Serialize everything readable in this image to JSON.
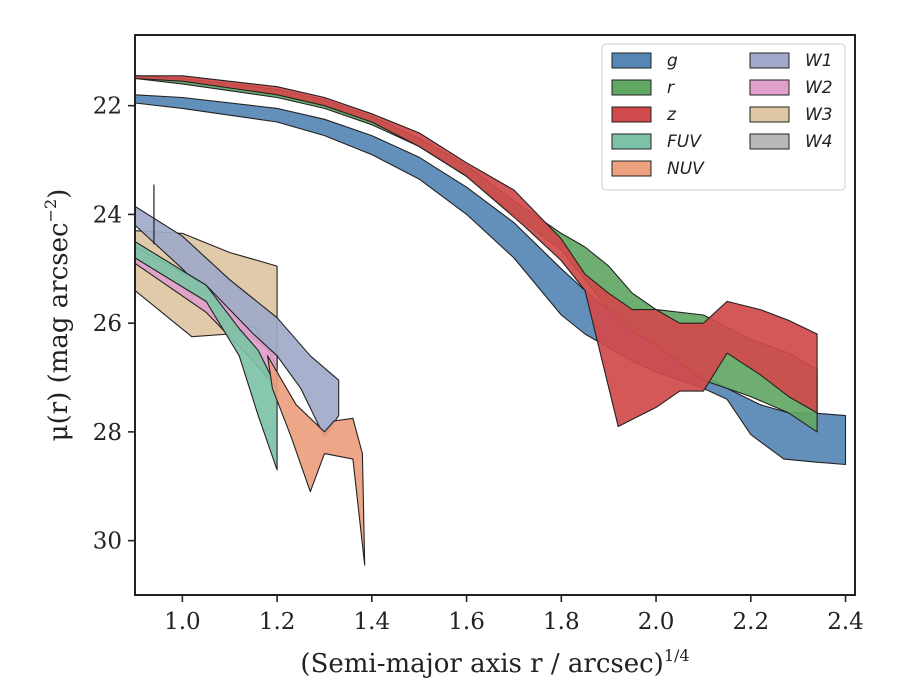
{
  "chart_data": {
    "type": "area",
    "xlabel": "(Semi-major axis r / arcsec)",
    "xlabel_sup": "1/4",
    "ylabel": "μ(r) (mag arcsec",
    "ylabel_sup": "−2",
    "ylabel_tail": ")",
    "xlim": [
      0.9,
      2.42
    ],
    "ylim": [
      31.0,
      20.7
    ],
    "y_inverted": true,
    "x_ticks": [
      1.0,
      1.2,
      1.4,
      1.6,
      1.8,
      2.0,
      2.2,
      2.4
    ],
    "x_tick_labels": [
      "1.0",
      "1.2",
      "1.4",
      "1.6",
      "1.8",
      "2.0",
      "2.2",
      "2.4"
    ],
    "y_ticks": [
      22,
      24,
      26,
      28,
      30
    ],
    "y_tick_labels": [
      "22",
      "24",
      "26",
      "28",
      "30"
    ],
    "grid": false,
    "legend_position": "top-right",
    "legend_columns": 2,
    "series": [
      {
        "name": "W3",
        "color": "#dec5a3",
        "x": [
          0.9,
          1.0,
          1.1,
          1.2,
          1.2,
          1.15,
          1.1,
          1.02,
          0.9
        ],
        "y": [
          24.3,
          24.35,
          24.7,
          24.95,
          26.8,
          26.05,
          26.2,
          26.25,
          25.4
        ]
      },
      {
        "name": "W1",
        "color": "#9fa9c9",
        "x": [
          0.9,
          1.0,
          1.1,
          1.2,
          1.27,
          1.33,
          1.33,
          1.3,
          1.25,
          1.2,
          1.12,
          1.0,
          0.9
        ],
        "y": [
          23.85,
          24.4,
          25.2,
          25.9,
          26.6,
          27.05,
          27.7,
          28.1,
          27.2,
          26.6,
          26.1,
          25.0,
          24.2
        ]
      },
      {
        "name": "W2",
        "color": "#e0a0cb",
        "x": [
          0.9,
          1.05,
          1.15,
          1.2,
          1.2,
          1.15,
          1.05,
          0.9
        ],
        "y": [
          24.6,
          25.3,
          26.2,
          26.6,
          27.2,
          26.7,
          25.8,
          24.9
        ]
      },
      {
        "name": "FUV",
        "color": "#7dc2a6",
        "x": [
          0.9,
          1.05,
          1.12,
          1.16,
          1.2,
          1.2,
          1.16,
          1.12,
          1.05,
          0.9
        ],
        "y": [
          24.5,
          25.3,
          26.1,
          26.5,
          27.2,
          28.7,
          27.7,
          26.6,
          25.6,
          24.8
        ]
      },
      {
        "name": "NUV",
        "color": "#eba07e",
        "x": [
          1.18,
          1.24,
          1.3,
          1.32,
          1.36,
          1.38,
          1.385,
          1.36,
          1.3,
          1.27,
          1.23,
          1.19
        ],
        "y": [
          26.6,
          27.5,
          28.0,
          27.8,
          27.75,
          28.4,
          30.45,
          28.5,
          28.4,
          29.1,
          28.1,
          27.2
        ]
      },
      {
        "name": "g",
        "color": "#5587b4",
        "x": [
          0.9,
          1.0,
          1.2,
          1.3,
          1.4,
          1.5,
          1.6,
          1.7,
          1.8,
          1.85,
          1.9,
          1.95,
          2.0,
          2.08,
          2.15,
          2.22,
          2.28,
          2.33,
          2.4,
          2.4,
          2.33,
          2.27,
          2.2,
          2.15,
          2.1,
          2.0,
          1.95,
          1.9,
          1.85,
          1.8,
          1.7,
          1.6,
          1.5,
          1.4,
          1.3,
          1.2,
          1.0,
          0.9
        ],
        "y": [
          21.8,
          21.85,
          22.05,
          22.25,
          22.55,
          22.95,
          23.5,
          24.15,
          25.0,
          25.4,
          25.75,
          25.75,
          26.25,
          26.85,
          27.2,
          27.5,
          27.65,
          27.65,
          27.7,
          28.6,
          28.55,
          28.5,
          28.05,
          27.4,
          27.2,
          26.9,
          26.7,
          26.45,
          26.2,
          25.85,
          24.8,
          24.0,
          23.35,
          22.9,
          22.55,
          22.3,
          22.05,
          21.95
        ]
      },
      {
        "name": "r",
        "color": "#62a865",
        "x": [
          0.9,
          1.0,
          1.2,
          1.3,
          1.4,
          1.5,
          1.6,
          1.7,
          1.8,
          1.85,
          1.9,
          1.95,
          2.0,
          2.1,
          2.2,
          2.28,
          2.34,
          2.34,
          2.28,
          2.2,
          2.1,
          2.0,
          1.95,
          1.9,
          1.85,
          1.8,
          1.7,
          1.6,
          1.5,
          1.4,
          1.3,
          1.2,
          1.0,
          0.9
        ],
        "y": [
          21.45,
          21.5,
          21.7,
          21.9,
          22.2,
          22.6,
          23.1,
          23.75,
          24.35,
          24.6,
          24.95,
          25.45,
          25.75,
          25.85,
          26.3,
          26.55,
          26.85,
          28.0,
          27.65,
          27.35,
          27.05,
          26.4,
          26.15,
          25.75,
          25.2,
          24.65,
          24.0,
          23.3,
          22.75,
          22.35,
          22.05,
          21.85,
          21.6,
          21.5
        ]
      },
      {
        "name": "z",
        "color": "#d14a4b",
        "x": [
          0.9,
          1.0,
          1.2,
          1.3,
          1.4,
          1.5,
          1.6,
          1.7,
          1.8,
          1.85,
          1.9,
          1.95,
          2.0,
          2.05,
          2.1,
          2.15,
          2.22,
          2.28,
          2.34,
          2.34,
          2.28,
          2.22,
          2.15,
          2.1,
          2.05,
          2.0,
          1.92,
          1.85,
          1.8,
          1.72,
          1.6,
          1.5,
          1.4,
          1.3,
          1.2,
          1.0,
          0.9
        ],
        "y": [
          21.45,
          21.45,
          21.65,
          21.85,
          22.15,
          22.5,
          23.05,
          23.55,
          24.45,
          25.1,
          25.45,
          25.75,
          25.75,
          26.0,
          26.0,
          25.6,
          25.75,
          25.95,
          26.2,
          27.65,
          27.35,
          26.95,
          26.55,
          27.25,
          27.25,
          27.55,
          27.9,
          25.4,
          24.85,
          24.2,
          23.3,
          22.75,
          22.3,
          22.0,
          21.8,
          21.55,
          21.5
        ]
      },
      {
        "name": "W4",
        "color": "#b9b9b9",
        "x": [],
        "y": []
      }
    ],
    "annotations": [
      {
        "type": "errorbar",
        "x": 0.94,
        "y_low": 23.45,
        "y_high": 24.55
      }
    ]
  }
}
